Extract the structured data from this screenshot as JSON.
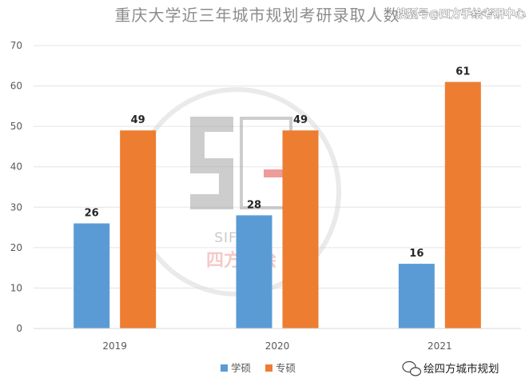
{
  "chart_data": {
    "type": "bar",
    "title": "重庆大学近三年城市规划考研录取人数",
    "categories": [
      "2019",
      "2020",
      "2021"
    ],
    "series": [
      {
        "name": "学硕",
        "values": [
          26,
          28,
          16
        ],
        "color": "#5b9bd5"
      },
      {
        "name": "专硕",
        "values": [
          49,
          49,
          61
        ],
        "color": "#ed7d31"
      }
    ],
    "ylim": [
      0,
      70
    ],
    "yticks": [
      0,
      10,
      20,
      30,
      40,
      50,
      60,
      70
    ],
    "grid": true,
    "legend": "bottom",
    "xlabel": "",
    "ylabel": ""
  },
  "watermark": {
    "corner_text": "搜狐号@四方手绘考研中心",
    "brand_latin": "SIFANG",
    "brand_cjk": "四方手绘",
    "footer_text": "绘四方城市规划",
    "footer_icon": "wechat-icon"
  }
}
